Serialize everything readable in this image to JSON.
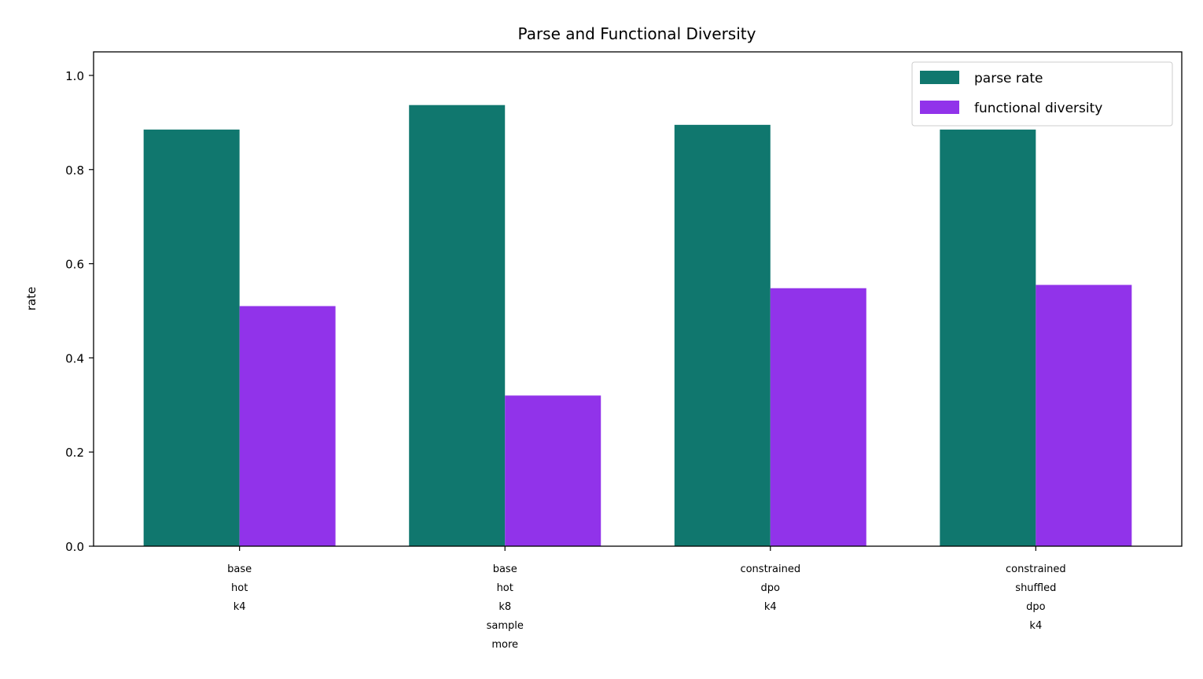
{
  "chart_data": {
    "type": "bar",
    "title": "Parse and Functional Diversity",
    "xlabel": "",
    "ylabel": "rate",
    "ylim": [
      0,
      1.05
    ],
    "yticks": [
      "0.0",
      "0.2",
      "0.4",
      "0.6",
      "0.8",
      "1.0"
    ],
    "categories": [
      [
        "base",
        "hot",
        "k4"
      ],
      [
        "base",
        "hot",
        "k8",
        "sample",
        "more"
      ],
      [
        "constrained",
        "dpo",
        "k4"
      ],
      [
        "constrained",
        "shuffled",
        "dpo",
        "k4"
      ]
    ],
    "series": [
      {
        "name": "parse rate",
        "color": "#10776e",
        "values": [
          0.885,
          0.937,
          0.895,
          0.885
        ]
      },
      {
        "name": "functional diversity",
        "color": "#9133ea",
        "values": [
          0.51,
          0.32,
          0.548,
          0.555
        ]
      }
    ],
    "legend": "top-right",
    "grid": false
  }
}
